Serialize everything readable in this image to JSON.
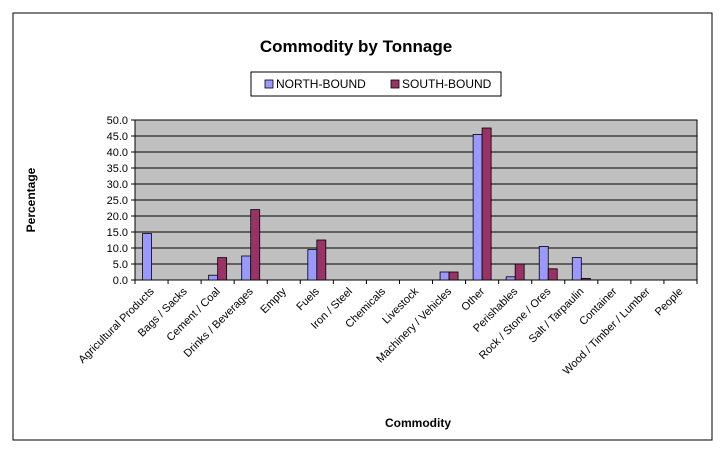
{
  "colors": {
    "plot_bg": "#c0c0c0",
    "north": "#9999ff",
    "south": "#993366",
    "grid": "#000000",
    "frame": "#000000"
  },
  "chart_data": {
    "type": "bar",
    "title": "Commodity by Tonnage",
    "xlabel": "Commodity",
    "ylabel": "Percentage",
    "ylim": [
      0,
      50
    ],
    "y_ticks": [
      "0.0",
      "5.0",
      "10.0",
      "15.0",
      "20.0",
      "25.0",
      "30.0",
      "35.0",
      "40.0",
      "45.0",
      "50.0"
    ],
    "grid": true,
    "legend_position": "top",
    "categories": [
      "Agricultural Products",
      "Bags / Sacks",
      "Cement / Coal",
      "Drinks / Beverages",
      "Empty",
      "Fuels",
      "Iron / Steel",
      "Chemicals",
      "Livestock",
      "Machinery / Vehicles",
      "Other",
      "Perishables",
      "Rock / Stone / Ores",
      "Salt / Tarpaulin",
      "Container",
      "Wood / Timber / Lumber",
      "People"
    ],
    "series": [
      {
        "name": "NORTH-BOUND",
        "color": "#9999ff",
        "values": [
          14.5,
          0,
          1.5,
          7.5,
          0,
          9.5,
          0,
          0,
          0,
          2.5,
          45.5,
          1.0,
          10.5,
          7.0,
          0,
          0,
          0
        ]
      },
      {
        "name": "SOUTH-BOUND",
        "color": "#993366",
        "values": [
          0,
          0,
          7.0,
          22.0,
          0,
          12.5,
          0,
          0,
          0,
          2.5,
          47.5,
          5.0,
          3.5,
          0.5,
          0,
          0,
          0
        ]
      }
    ]
  }
}
